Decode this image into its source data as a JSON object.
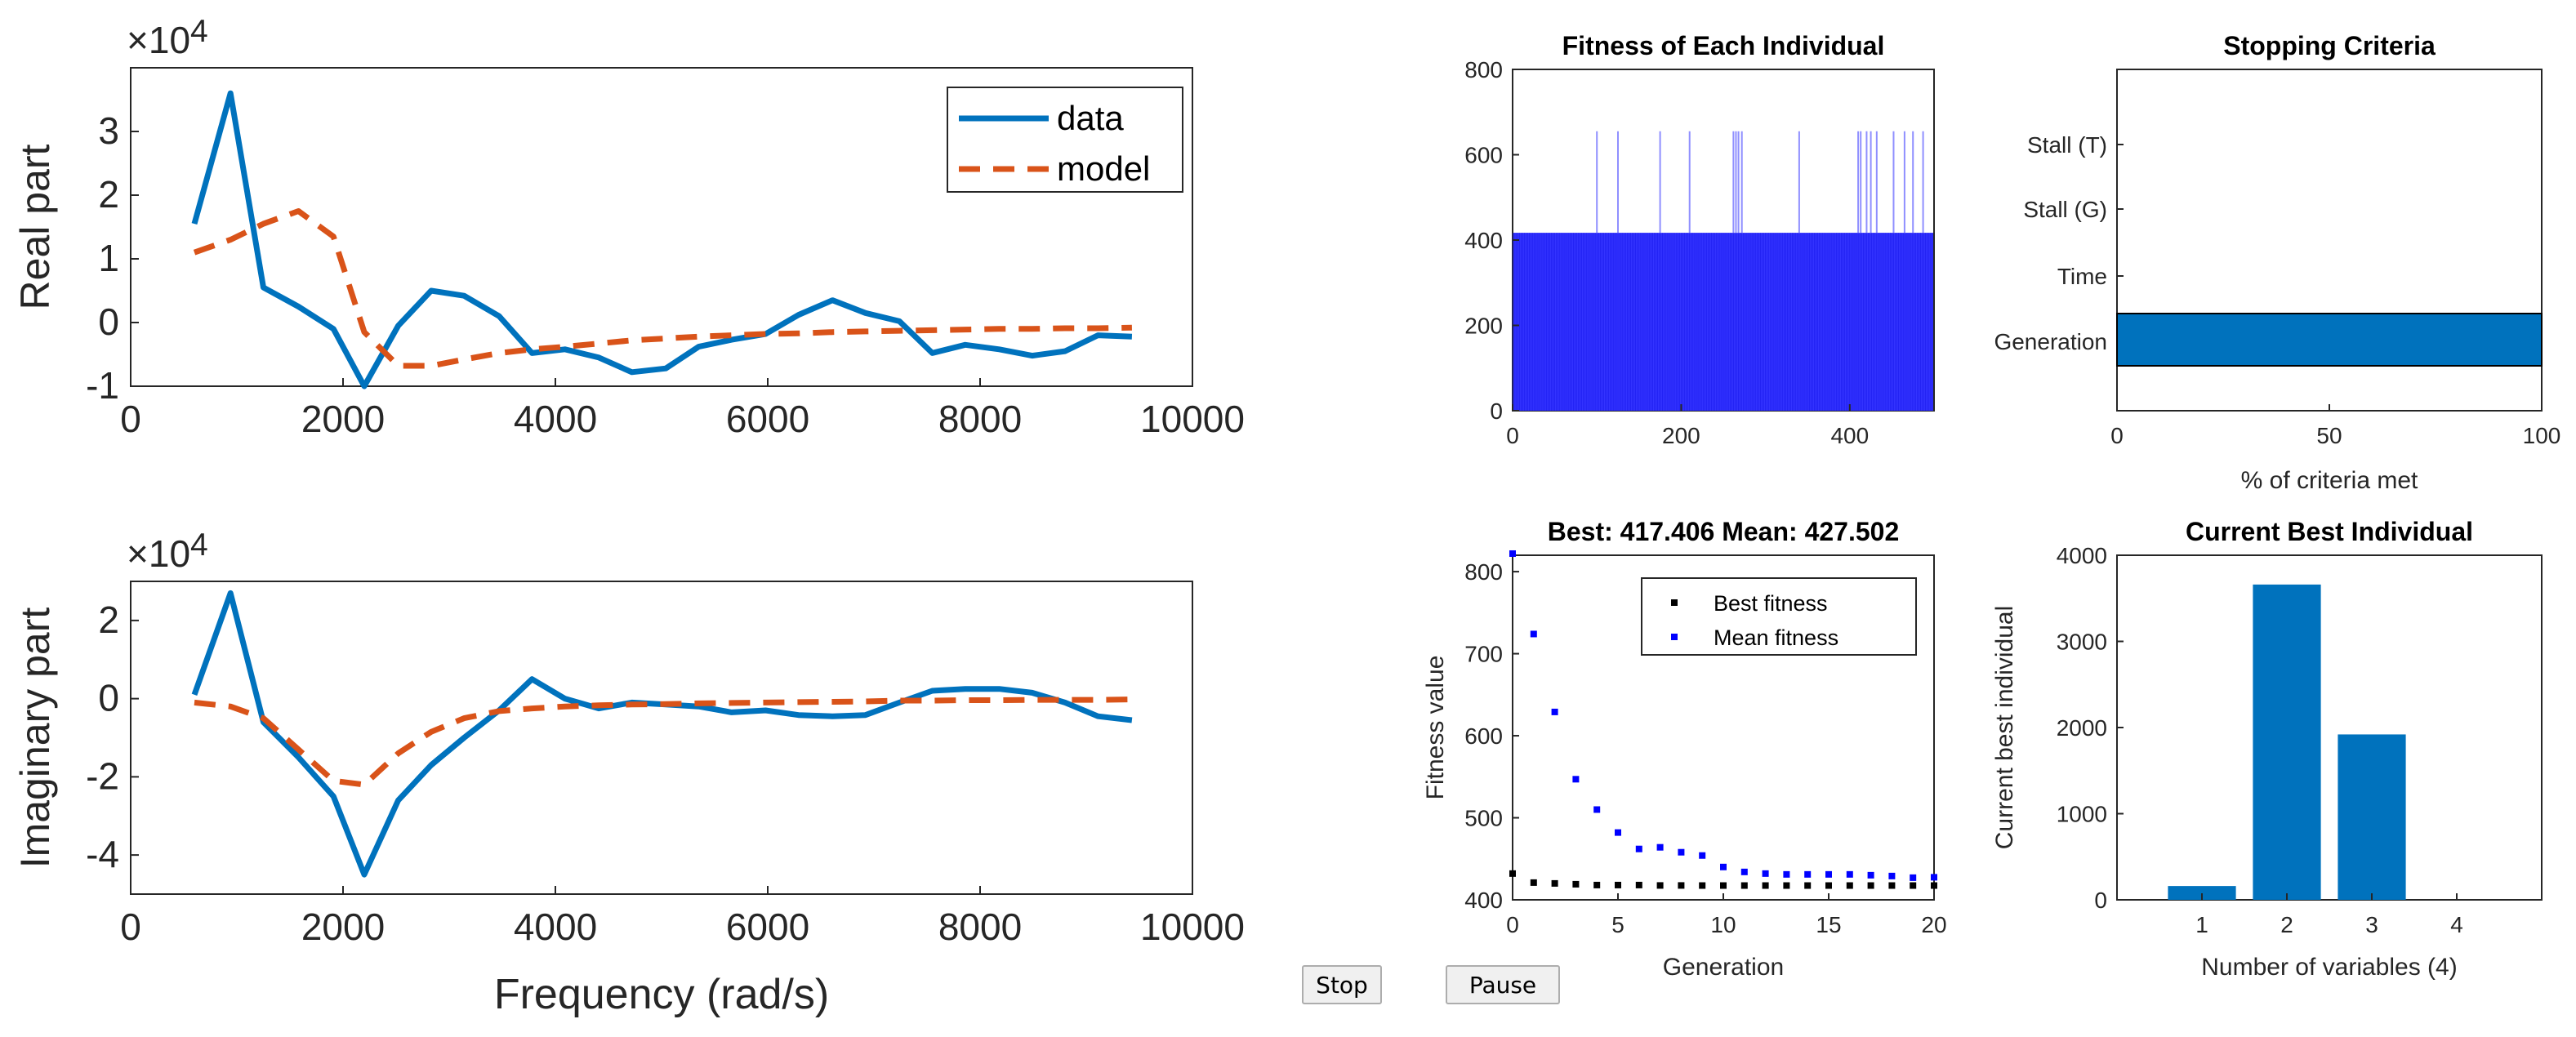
{
  "colors": {
    "data": "#0072BD",
    "model": "#D95319",
    "fitness_bar": "#3333ff",
    "bar": "#0072BD",
    "best": "#000000",
    "mean": "#0000ff"
  },
  "buttons": {
    "stop_label": "Stop",
    "pause_label": "Pause"
  },
  "chart_data": [
    {
      "id": "real",
      "type": "line",
      "title": "",
      "xlabel": "",
      "ylabel": "Real part",
      "exponent_label": "×10",
      "exponent_power": "4",
      "xlim": [
        0,
        10000
      ],
      "ylim": [
        -1,
        4
      ],
      "xticks": [
        0,
        2000,
        4000,
        6000,
        8000,
        10000
      ],
      "yticks": [
        -1,
        0,
        1,
        2,
        3
      ],
      "x_tick_labels": [
        "0",
        "2000",
        "4000",
        "6000",
        "8000",
        "10000"
      ],
      "y_tick_labels": [
        "-1",
        "0",
        "1",
        "2",
        "3"
      ],
      "legend": [
        "data",
        "model"
      ],
      "series": [
        {
          "name": "data",
          "style": "solid",
          "x": [
            600,
            940,
            1250,
            1580,
            1910,
            2200,
            2520,
            2830,
            3140,
            3470,
            3780,
            4090,
            4410,
            4720,
            5040,
            5350,
            5660,
            5980,
            6290,
            6610,
            6920,
            7240,
            7550,
            7860,
            8180,
            8490,
            8800,
            9110,
            9430
          ],
          "y": [
            1.55,
            3.6,
            0.55,
            0.25,
            -0.1,
            -1.0,
            -0.05,
            0.5,
            0.42,
            0.1,
            -0.48,
            -0.42,
            -0.55,
            -0.78,
            -0.72,
            -0.38,
            -0.27,
            -0.18,
            0.12,
            0.35,
            0.15,
            0.02,
            -0.48,
            -0.35,
            -0.42,
            -0.52,
            -0.45,
            -0.2,
            -0.22
          ]
        },
        {
          "name": "model",
          "style": "dashed",
          "x": [
            600,
            940,
            1250,
            1580,
            1910,
            2200,
            2520,
            2830,
            3140,
            3470,
            3780,
            4090,
            4410,
            4720,
            5040,
            5350,
            5660,
            5980,
            6290,
            6610,
            6920,
            7240,
            7550,
            7860,
            8180,
            8490,
            8800,
            9110,
            9430
          ],
          "y": [
            1.1,
            1.3,
            1.55,
            1.75,
            1.35,
            -0.15,
            -0.68,
            -0.68,
            -0.58,
            -0.48,
            -0.42,
            -0.38,
            -0.33,
            -0.28,
            -0.25,
            -0.22,
            -0.2,
            -0.18,
            -0.17,
            -0.15,
            -0.14,
            -0.13,
            -0.12,
            -0.11,
            -0.1,
            -0.1,
            -0.09,
            -0.09,
            -0.08
          ]
        }
      ]
    },
    {
      "id": "imag",
      "type": "line",
      "title": "",
      "xlabel": "Frequency (rad/s)",
      "ylabel": "Imaginary part",
      "exponent_label": "×10",
      "exponent_power": "4",
      "xlim": [
        0,
        10000
      ],
      "ylim": [
        -5,
        3
      ],
      "xticks": [
        0,
        2000,
        4000,
        6000,
        8000,
        10000
      ],
      "yticks": [
        -4,
        -2,
        0,
        2
      ],
      "x_tick_labels": [
        "0",
        "2000",
        "4000",
        "6000",
        "8000",
        "10000"
      ],
      "y_tick_labels": [
        "-4",
        "-2",
        "0",
        "2"
      ],
      "series": [
        {
          "name": "data",
          "style": "solid",
          "x": [
            600,
            940,
            1250,
            1580,
            1910,
            2200,
            2520,
            2830,
            3140,
            3470,
            3780,
            4090,
            4410,
            4720,
            5040,
            5350,
            5660,
            5980,
            6290,
            6610,
            6920,
            7240,
            7550,
            7860,
            8180,
            8490,
            8800,
            9110,
            9430
          ],
          "y": [
            0.1,
            2.7,
            -0.6,
            -1.5,
            -2.5,
            -4.5,
            -2.6,
            -1.7,
            -1.0,
            -0.3,
            0.5,
            0.0,
            -0.25,
            -0.1,
            -0.15,
            -0.2,
            -0.35,
            -0.3,
            -0.42,
            -0.45,
            -0.42,
            -0.1,
            0.2,
            0.25,
            0.25,
            0.15,
            -0.1,
            -0.45,
            -0.55
          ]
        },
        {
          "name": "model",
          "style": "dashed",
          "x": [
            600,
            940,
            1250,
            1580,
            1910,
            2200,
            2520,
            2830,
            3140,
            3470,
            3780,
            4090,
            4410,
            4720,
            5040,
            5350,
            5660,
            5980,
            6290,
            6610,
            6920,
            7240,
            7550,
            7860,
            8180,
            8490,
            8800,
            9110,
            9430
          ],
          "y": [
            -0.1,
            -0.2,
            -0.5,
            -1.3,
            -2.1,
            -2.2,
            -1.4,
            -0.85,
            -0.5,
            -0.32,
            -0.25,
            -0.2,
            -0.17,
            -0.15,
            -0.14,
            -0.12,
            -0.11,
            -0.1,
            -0.09,
            -0.08,
            -0.07,
            -0.05,
            -0.05,
            -0.04,
            -0.04,
            -0.03,
            -0.03,
            -0.03,
            -0.02
          ]
        }
      ]
    },
    {
      "id": "fitness",
      "type": "bar",
      "title": "Fitness of Each Individual",
      "xlabel": "",
      "ylabel": "",
      "xlim": [
        0,
        500
      ],
      "ylim": [
        0,
        800
      ],
      "xticks": [
        0,
        200,
        400
      ],
      "yticks": [
        0,
        200,
        400,
        600,
        800
      ],
      "x_tick_labels": [
        "0",
        "200",
        "400"
      ],
      "y_tick_labels": [
        "0",
        "200",
        "400",
        "600",
        "800"
      ],
      "individuals": 500,
      "base_value": 417,
      "outlier_value": 655,
      "outlier_indices": [
        100,
        125,
        175,
        210,
        262,
        265,
        268,
        272,
        340,
        410,
        413,
        420,
        425,
        432,
        452,
        465,
        475,
        487
      ]
    },
    {
      "id": "stopping",
      "type": "bar",
      "title": "Stopping Criteria",
      "xlabel": "% of criteria met",
      "ylabel": "",
      "xlim": [
        0,
        100
      ],
      "xticks": [
        0,
        50,
        100
      ],
      "x_tick_labels": [
        "0",
        "50",
        "100"
      ],
      "categories": [
        "Stall (T)",
        "Stall (G)",
        "Time",
        "Generation"
      ],
      "values": [
        0,
        0,
        0,
        100
      ]
    },
    {
      "id": "best",
      "type": "scatter",
      "title": "Best: 417.406 Mean: 427.502",
      "xlabel": "Generation",
      "ylabel": "Fitness value",
      "xlim": [
        0,
        20
      ],
      "ylim": [
        400,
        820
      ],
      "xticks": [
        0,
        5,
        10,
        15,
        20
      ],
      "yticks": [
        400,
        500,
        600,
        700,
        800
      ],
      "x_tick_labels": [
        "0",
        "5",
        "10",
        "15",
        "20"
      ],
      "y_tick_labels": [
        "400",
        "500",
        "600",
        "700",
        "800"
      ],
      "legend": [
        "Best fitness",
        "Mean fitness"
      ],
      "series": [
        {
          "name": "Best fitness",
          "x": [
            0,
            1,
            2,
            3,
            4,
            5,
            6,
            7,
            8,
            9,
            10,
            11,
            12,
            13,
            14,
            15,
            16,
            17,
            18,
            19,
            20
          ],
          "y": [
            432,
            421,
            420,
            419,
            418,
            418,
            418,
            417.5,
            417.5,
            417.4,
            417.4,
            417.4,
            417.4,
            417.4,
            417.4,
            417.4,
            417.4,
            417.4,
            417.4,
            417.4,
            417.4
          ]
        },
        {
          "name": "Mean fitness",
          "x": [
            0,
            1,
            2,
            3,
            4,
            5,
            6,
            7,
            8,
            9,
            10,
            11,
            12,
            13,
            14,
            15,
            16,
            17,
            18,
            19,
            20
          ],
          "y": [
            822,
            724,
            629,
            547,
            510,
            482,
            462,
            464,
            458,
            454,
            440,
            434,
            432,
            431,
            431,
            431,
            431,
            430,
            429,
            427,
            427.5
          ]
        }
      ]
    },
    {
      "id": "individual",
      "type": "bar",
      "title": "Current Best Individual",
      "xlabel": "Number of variables (4)",
      "ylabel": "Current best individual",
      "ylim": [
        0,
        4000
      ],
      "yticks": [
        0,
        1000,
        2000,
        3000,
        4000
      ],
      "y_tick_labels": [
        "0",
        "1000",
        "2000",
        "3000",
        "4000"
      ],
      "categories": [
        "1",
        "2",
        "3",
        "4"
      ],
      "values": [
        160,
        3660,
        1920,
        0
      ]
    }
  ]
}
